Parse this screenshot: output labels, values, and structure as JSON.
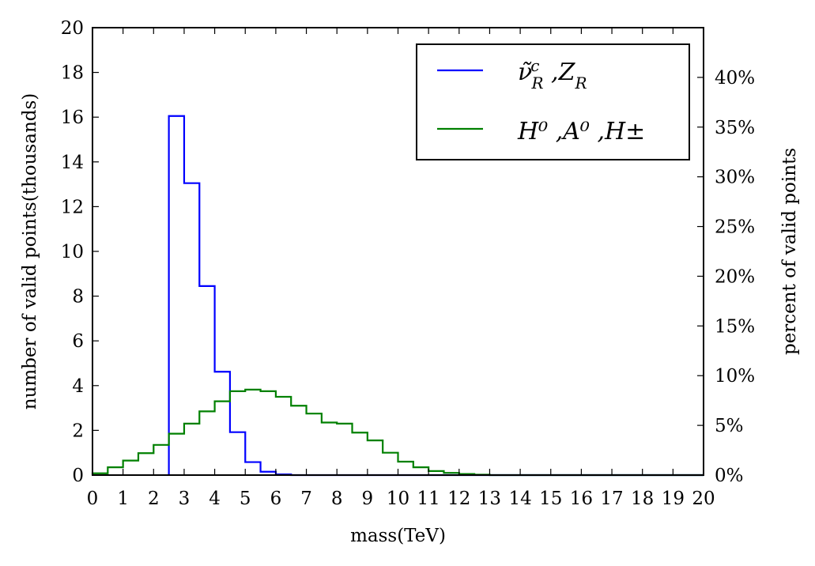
{
  "chart_data": {
    "type": "histogram",
    "xlabel": "mass(TeV)",
    "ylabel": "number of valid points(thousands)",
    "y2label": "percent of valid points",
    "xlim": [
      0,
      20
    ],
    "ylim": [
      0,
      20
    ],
    "y2lim": [
      0,
      45
    ],
    "x_ticks": [
      "0",
      "1",
      "2",
      "3",
      "4",
      "5",
      "6",
      "7",
      "8",
      "9",
      "10",
      "11",
      "12",
      "13",
      "14",
      "15",
      "16",
      "17",
      "18",
      "19",
      "20"
    ],
    "y_ticks": [
      "0",
      "2",
      "4",
      "6",
      "8",
      "10",
      "12",
      "14",
      "16",
      "18",
      "20"
    ],
    "y2_ticks": [
      "0%",
      "5%",
      "10%",
      "15%",
      "20%",
      "25%",
      "30%",
      "35%",
      "40%"
    ],
    "bin_edges": [
      0,
      0.5,
      1,
      1.5,
      2,
      2.5,
      3,
      3.5,
      4,
      4.5,
      5,
      5.5,
      6,
      6.5,
      7,
      7.5,
      8,
      8.5,
      9,
      9.5,
      10,
      10.5,
      11,
      11.5,
      12,
      12.5,
      13,
      13.5,
      14,
      14.5,
      15,
      15.5,
      16,
      16.5,
      17,
      17.5,
      18,
      18.5,
      19,
      19.5,
      20
    ],
    "legend_position": "top-right",
    "grid": false,
    "series": [
      {
        "name": "ν̃ᶜ_R ,Z_R",
        "legend_main": "ν̃",
        "legend_sup": "c",
        "legend_sub": "R",
        "legend_rest": " ,Z",
        "legend_sub2": "R",
        "color": "#0000ff",
        "values": [
          0,
          0,
          0,
          0,
          0,
          16.05,
          13.05,
          8.45,
          4.62,
          1.92,
          0.58,
          0.15,
          0.03,
          0,
          0,
          0,
          0,
          0,
          0,
          0,
          0,
          0,
          0,
          0,
          0,
          0,
          0,
          0,
          0,
          0,
          0,
          0,
          0,
          0,
          0,
          0,
          0,
          0,
          0,
          0
        ]
      },
      {
        "name": "H⁰ ,A⁰ ,H±",
        "legend_text": "H⁰ ,A⁰ ,H±",
        "color": "#008000",
        "values": [
          0.08,
          0.35,
          0.65,
          0.98,
          1.35,
          1.85,
          2.3,
          2.85,
          3.3,
          3.75,
          3.82,
          3.75,
          3.5,
          3.1,
          2.75,
          2.35,
          2.3,
          1.9,
          1.55,
          1.0,
          0.6,
          0.35,
          0.18,
          0.1,
          0.05,
          0.02,
          0,
          0,
          0,
          0,
          0,
          0,
          0,
          0,
          0,
          0,
          0,
          0,
          0,
          0
        ]
      }
    ]
  }
}
